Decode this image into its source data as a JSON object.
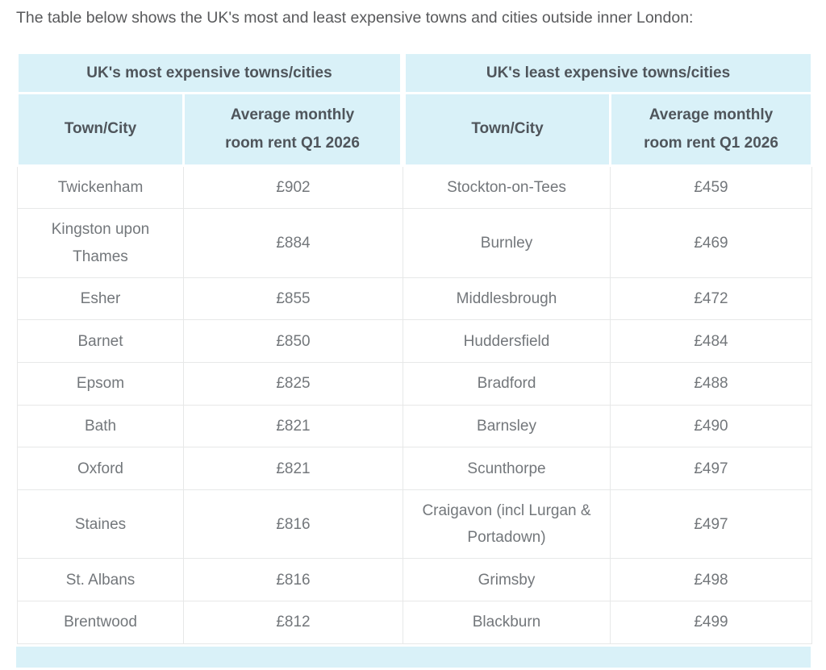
{
  "intro": {
    "text": "The table below shows the UK's most and least expensive towns and cities outside inner London:"
  },
  "table": {
    "group_headers": {
      "most": "UK's most expensive towns/cities",
      "least": "UK's least expensive towns/cities"
    },
    "column_headers": {
      "town": "Town/City",
      "rent": "Average monthly room rent Q1 2026"
    },
    "rows": [
      {
        "most_town": "Twickenham",
        "most_rent": "£902",
        "least_town": "Stockton-on-Tees",
        "least_rent": "£459"
      },
      {
        "most_town": "Kingston upon Thames",
        "most_rent": "£884",
        "least_town": "Burnley",
        "least_rent": "£469"
      },
      {
        "most_town": "Esher",
        "most_rent": "£855",
        "least_town": "Middlesbrough",
        "least_rent": "£472"
      },
      {
        "most_town": "Barnet",
        "most_rent": "£850",
        "least_town": "Huddersfield",
        "least_rent": "£484"
      },
      {
        "most_town": "Epsom",
        "most_rent": "£825",
        "least_town": "Bradford",
        "least_rent": "£488"
      },
      {
        "most_town": "Bath",
        "most_rent": "£821",
        "least_town": "Barnsley",
        "least_rent": "£490"
      },
      {
        "most_town": "Oxford",
        "most_rent": "£821",
        "least_town": "Scunthorpe",
        "least_rent": "£497"
      },
      {
        "most_town": "Staines",
        "most_rent": "£816",
        "least_town": "Craigavon (incl Lurgan & Portadown)",
        "least_rent": "£497"
      },
      {
        "most_town": "St. Albans",
        "most_rent": "£816",
        "least_town": "Grimsby",
        "least_rent": "£498"
      },
      {
        "most_town": "Brentwood",
        "most_rent": "£812",
        "least_town": "Blackburn",
        "least_rent": "£499"
      }
    ],
    "colors": {
      "header_bg": "#d9f1f8",
      "header_text": "#4f555b",
      "body_text": "#73777b",
      "border": "#e7e8e8"
    }
  }
}
